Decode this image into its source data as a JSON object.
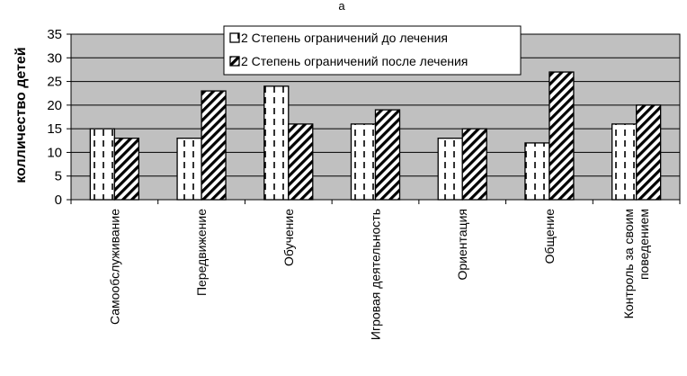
{
  "chart_data": {
    "type": "bar",
    "title": "а",
    "ylabel": "колличество детей",
    "xlabel": "",
    "ylim": [
      0,
      35
    ],
    "yticks": [
      0,
      5,
      10,
      15,
      20,
      25,
      30,
      35
    ],
    "grid": true,
    "legend_position": "top-right",
    "categories": [
      [
        "Самообслуживание"
      ],
      [
        "Передвижение"
      ],
      [
        "Обучение"
      ],
      [
        "Игровая деятельность"
      ],
      [
        "Ориентация"
      ],
      [
        "Общение"
      ],
      [
        "Контроль за своим",
        "поведением"
      ]
    ],
    "series": [
      {
        "name": "2 Степень ограничений до лечения",
        "values": [
          15,
          13,
          24,
          16,
          13,
          12,
          16
        ],
        "pattern": "dashed-vertical"
      },
      {
        "name": "2 Степень ограничений после лечения",
        "values": [
          13,
          23,
          16,
          19,
          15,
          27,
          20
        ],
        "pattern": "diagonal-stripes"
      }
    ],
    "colors": {
      "plot_background": "#c0c0c0",
      "bar_fill": "#ffffff",
      "ink": "#000000"
    }
  }
}
